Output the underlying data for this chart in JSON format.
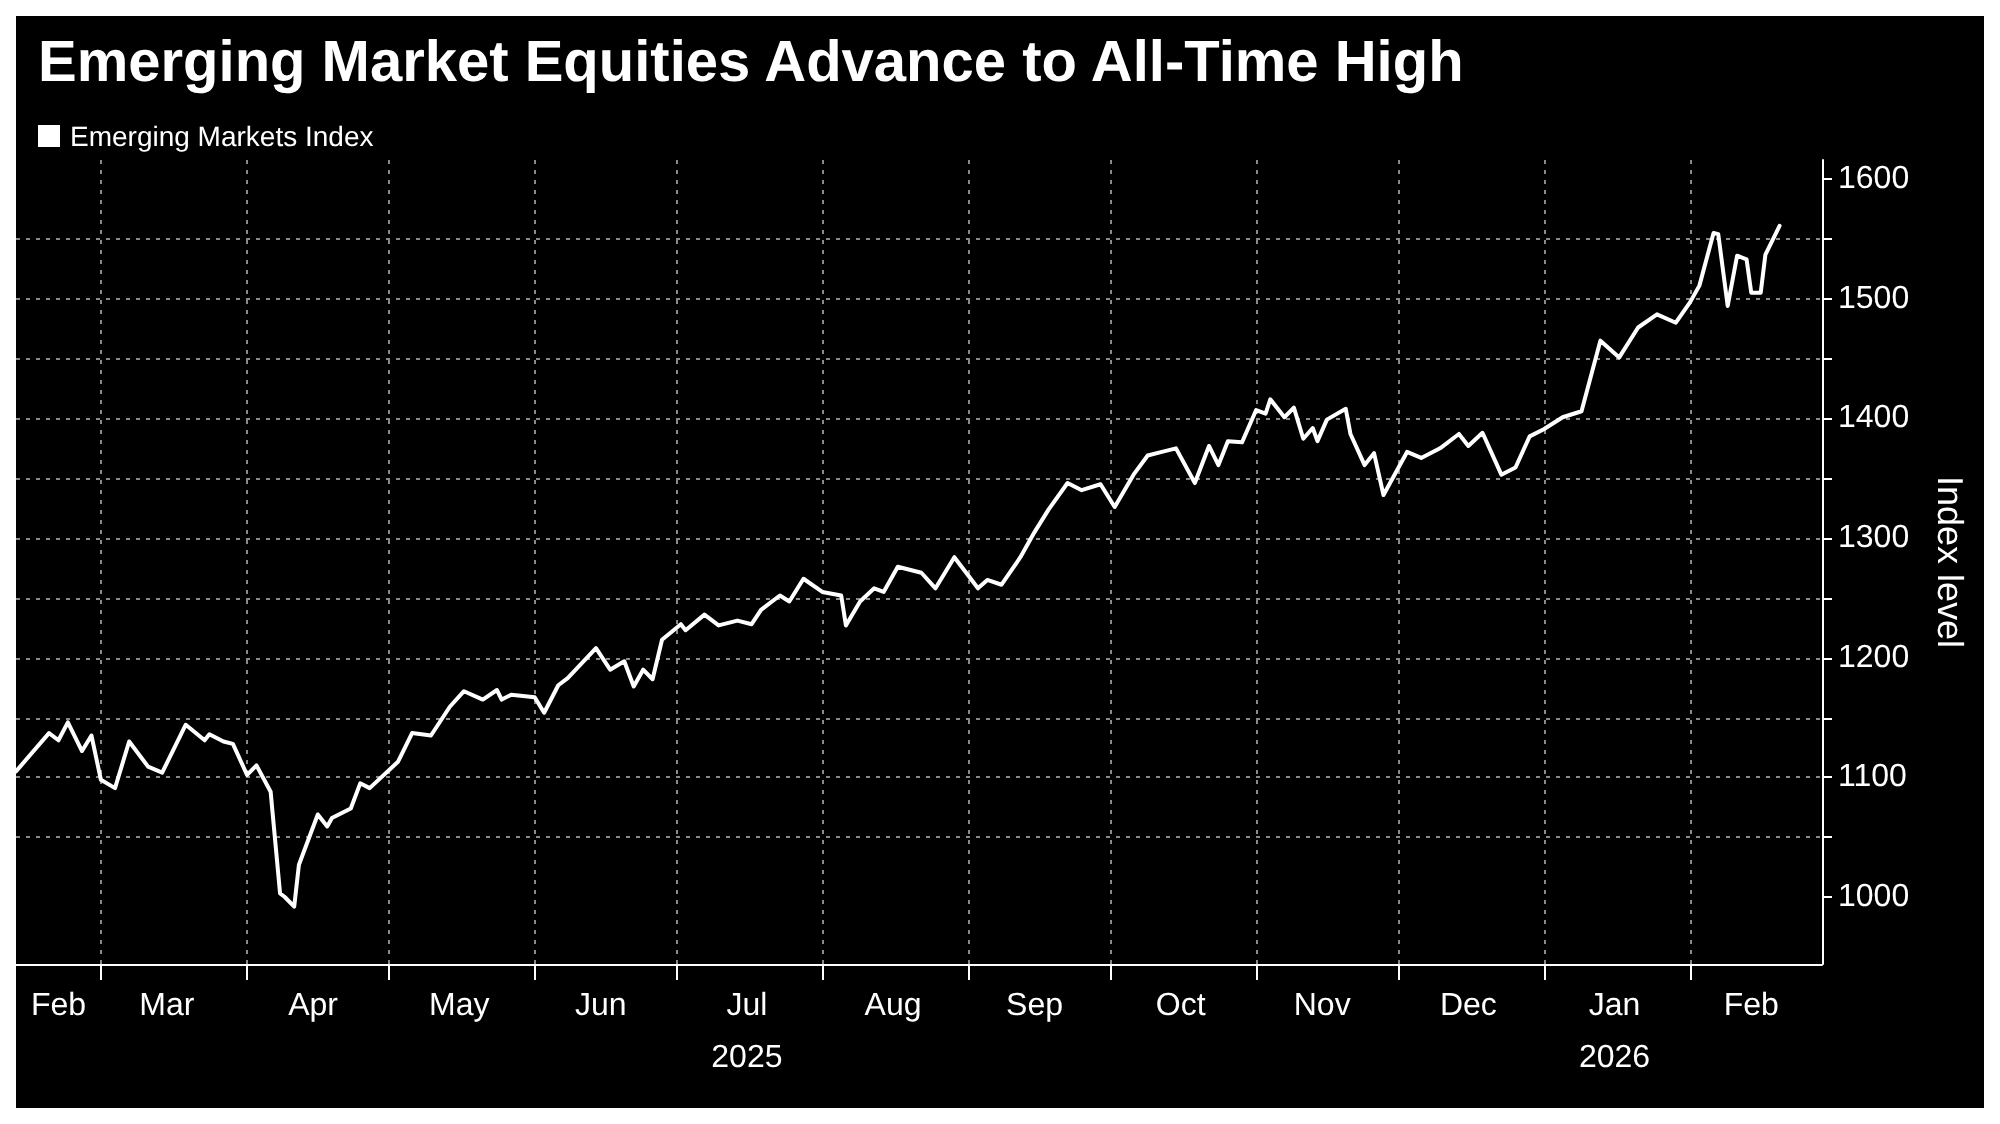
{
  "chart_data": {
    "type": "line",
    "title": "Emerging Market Equities Advance to All-Time High",
    "ylabel": "Index level",
    "legend": "top left",
    "grid": true,
    "marker": "none",
    "line_style": "solid",
    "xlim": [
      "2025-02-11",
      "2026-03-01"
    ],
    "xticks": [
      {
        "value": "2025-02-20",
        "label": "Feb"
      },
      {
        "value": "2025-03-01",
        "label": null
      },
      {
        "value": "2025-03-15",
        "label": "Mar"
      },
      {
        "value": "2025-04-01",
        "label": null
      },
      {
        "value": "2025-04-15",
        "label": "Apr"
      },
      {
        "value": "2025-05-01",
        "label": null
      },
      {
        "value": "2025-05-16",
        "label": "May"
      },
      {
        "value": "2025-06-01",
        "label": null
      },
      {
        "value": "2025-06-15",
        "label": "Jun"
      },
      {
        "value": "2025-07-01",
        "label": null
      },
      {
        "value": "2025-07-16",
        "label": "Jul\n2025"
      },
      {
        "value": "2025-08-01",
        "label": null
      },
      {
        "value": "2025-08-16",
        "label": "Aug"
      },
      {
        "value": "2025-09-01",
        "label": null
      },
      {
        "value": "2025-09-15",
        "label": "Sep"
      },
      {
        "value": "2025-10-01",
        "label": null
      },
      {
        "value": "2025-10-16",
        "label": "Oct"
      },
      {
        "value": "2025-11-01",
        "label": null
      },
      {
        "value": "2025-11-15",
        "label": "Nov"
      },
      {
        "value": "2025-12-01",
        "label": null
      },
      {
        "value": "2025-12-16",
        "label": "Dec"
      },
      {
        "value": "2026-01-01",
        "label": null
      },
      {
        "value": "2026-01-16",
        "label": "Jan\n2026"
      },
      {
        "value": "2026-02-01",
        "label": null
      },
      {
        "value": "2026-02-14",
        "label": "Feb"
      }
    ],
    "ylim": [
      944,
      1616
    ],
    "yticks": [
      1000,
      {
        "value": 1050,
        "label": null
      },
      1100,
      {
        "value": 1150,
        "label": null
      },
      1200,
      {
        "value": 1250,
        "label": null
      },
      1300,
      {
        "value": 1350,
        "label": null
      },
      1400,
      {
        "value": 1450,
        "label": null
      },
      1500,
      {
        "value": 1550,
        "label": null
      },
      1600
    ],
    "x": [
      "2025-02-11",
      "2025-02-18",
      "2025-02-20",
      "2025-02-22",
      "2025-02-25",
      "2025-02-27",
      "2025-03-01",
      "2025-03-04",
      "2025-03-07",
      "2025-03-11",
      "2025-03-14",
      "2025-03-19",
      "2025-03-23",
      "2025-03-24",
      "2025-03-27",
      "2025-03-29",
      "2025-04-01",
      "2025-04-03",
      "2025-04-06",
      "2025-04-08",
      "2025-04-09",
      "2025-04-11",
      "2025-04-12",
      "2025-04-16",
      "2025-04-18",
      "2025-04-19",
      "2025-04-23",
      "2025-04-25",
      "2025-04-27",
      "2025-05-03",
      "2025-05-06",
      "2025-05-10",
      "2025-05-14",
      "2025-05-17",
      "2025-05-21",
      "2025-05-24",
      "2025-05-25",
      "2025-05-27",
      "2025-06-01",
      "2025-06-03",
      "2025-06-06",
      "2025-06-08",
      "2025-06-14",
      "2025-06-17",
      "2025-06-20",
      "2025-06-22",
      "2025-06-24",
      "2025-06-26",
      "2025-06-28",
      "2025-07-02",
      "2025-07-03",
      "2025-07-07",
      "2025-07-10",
      "2025-07-14",
      "2025-07-17",
      "2025-07-19",
      "2025-07-23",
      "2025-07-25",
      "2025-07-28",
      "2025-08-01",
      "2025-08-05",
      "2025-08-06",
      "2025-08-09",
      "2025-08-12",
      "2025-08-14",
      "2025-08-17",
      "2025-08-22",
      "2025-08-25",
      "2025-08-29",
      "2025-09-03",
      "2025-09-05",
      "2025-09-08",
      "2025-09-12",
      "2025-09-15",
      "2025-09-18",
      "2025-09-22",
      "2025-09-25",
      "2025-09-29",
      "2025-10-02",
      "2025-10-06",
      "2025-10-09",
      "2025-10-12",
      "2025-10-15",
      "2025-10-19",
      "2025-10-22",
      "2025-10-24",
      "2025-10-26",
      "2025-10-29",
      "2025-11-01",
      "2025-11-03",
      "2025-11-04",
      "2025-11-07",
      "2025-11-09",
      "2025-11-11",
      "2025-11-13",
      "2025-11-14",
      "2025-11-16",
      "2025-11-20",
      "2025-11-21",
      "2025-11-24",
      "2025-11-26",
      "2025-11-28",
      "2025-12-03",
      "2025-12-06",
      "2025-12-10",
      "2025-12-14",
      "2025-12-16",
      "2025-12-19",
      "2025-12-23",
      "2025-12-26",
      "2025-12-29",
      "2026-01-01",
      "2026-01-05",
      "2026-01-09",
      "2026-01-13",
      "2026-01-17",
      "2026-01-21",
      "2026-01-25",
      "2026-01-29",
      "2026-02-01",
      "2026-02-03",
      "2026-02-06",
      "2026-02-07",
      "2026-02-09",
      "2026-02-11",
      "2026-02-13",
      "2026-02-14",
      "2026-02-16",
      "2026-02-17",
      "2026-02-20"
    ],
    "series": [
      {
        "name": "Emerging Markets Index",
        "color": "#ffffff",
        "values": [
          1105,
          1137,
          1131,
          1146,
          1122,
          1135,
          1098,
          1091,
          1130,
          1109,
          1104,
          1144,
          1131,
          1136,
          1130,
          1128,
          1102,
          1110,
          1088,
          1003,
          1000,
          992,
          1027,
          1069,
          1059,
          1066,
          1074,
          1095,
          1091,
          1113,
          1137,
          1135,
          1159,
          1172,
          1165,
          1173,
          1165,
          1169,
          1167,
          1154,
          1177,
          1183,
          1208,
          1190,
          1197,
          1176,
          1190,
          1182,
          1215,
          1228,
          1223,
          1236,
          1227,
          1231,
          1228,
          1240,
          1252,
          1247,
          1266,
          1255,
          1252,
          1227,
          1247,
          1258,
          1255,
          1276,
          1271,
          1258,
          1284,
          1258,
          1265,
          1261,
          1284,
          1305,
          1324,
          1346,
          1340,
          1345,
          1326,
          1353,
          1369,
          1372,
          1375,
          1346,
          1377,
          1361,
          1381,
          1380,
          1407,
          1404,
          1416,
          1401,
          1409,
          1383,
          1392,
          1381,
          1399,
          1408,
          1387,
          1361,
          1371,
          1336,
          1372,
          1367,
          1375,
          1387,
          1377,
          1388,
          1353,
          1359,
          1385,
          1391,
          1401,
          1406,
          1465,
          1451,
          1476,
          1487,
          1480,
          1497,
          1511,
          1555,
          1554,
          1494,
          1536,
          1533,
          1505,
          1505,
          1537,
          1561
        ]
      }
    ]
  }
}
